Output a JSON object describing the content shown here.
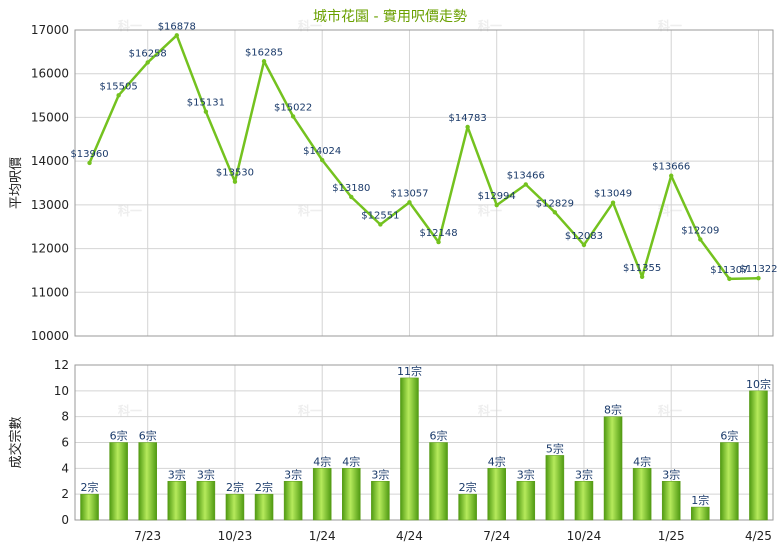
{
  "title": "城市花園 - 實用呎價走勢",
  "watermark": "科一",
  "colors": {
    "title": "#6aa000",
    "line": "#74c21f",
    "bar_light": "#b6ea5c",
    "bar_dark": "#4f9a12",
    "label": "#1a3a6a",
    "grid": "#d4d4d4"
  },
  "chart_data": [
    {
      "type": "line",
      "ylabel": "平均呎價",
      "ylim": [
        10000,
        17000
      ],
      "yticks": [
        "10000",
        "11000",
        "12000",
        "13000",
        "14000",
        "15000",
        "16000",
        "17000"
      ],
      "values": [
        13960,
        15505,
        16258,
        16878,
        15131,
        13530,
        16285,
        15022,
        14024,
        13180,
        12551,
        13057,
        12148,
        14783,
        12994,
        13466,
        12829,
        12083,
        13049,
        11355,
        13666,
        12209,
        11307,
        11322
      ],
      "labels": [
        "$13960",
        "$15505",
        "$16258",
        "$16878",
        "$15131",
        "$13530",
        "$16285",
        "$15022",
        "$14024",
        "$13180",
        "$12551",
        "$13057",
        "$12148",
        "$14783",
        "$12994",
        "$13466",
        "$12829",
        "$12083",
        "$13049",
        "$11355",
        "$13666",
        "$12209",
        "$11307",
        "$11322"
      ],
      "grid": true
    },
    {
      "type": "bar",
      "ylabel": "成交宗數",
      "ylim": [
        0,
        12
      ],
      "yticks": [
        "0",
        "2",
        "4",
        "6",
        "8",
        "10",
        "12"
      ],
      "values": [
        2,
        6,
        6,
        3,
        3,
        2,
        2,
        3,
        4,
        4,
        3,
        11,
        6,
        2,
        4,
        3,
        5,
        3,
        8,
        4,
        3,
        1,
        6,
        10
      ],
      "labels": [
        "2宗",
        "6宗",
        "6宗",
        "3宗",
        "3宗",
        "2宗",
        "2宗",
        "3宗",
        "4宗",
        "4宗",
        "3宗",
        "11宗",
        "6宗",
        "2宗",
        "4宗",
        "3宗",
        "5宗",
        "3宗",
        "8宗",
        "4宗",
        "3宗",
        "1宗",
        "6宗",
        "10宗"
      ],
      "xticks": [
        {
          "label": "7/23",
          "index": 2
        },
        {
          "label": "10/23",
          "index": 5
        },
        {
          "label": "1/24",
          "index": 8
        },
        {
          "label": "4/24",
          "index": 11
        },
        {
          "label": "7/24",
          "index": 14
        },
        {
          "label": "10/24",
          "index": 17
        },
        {
          "label": "1/25",
          "index": 20
        },
        {
          "label": "4/25",
          "index": 23
        }
      ],
      "grid": true
    }
  ]
}
